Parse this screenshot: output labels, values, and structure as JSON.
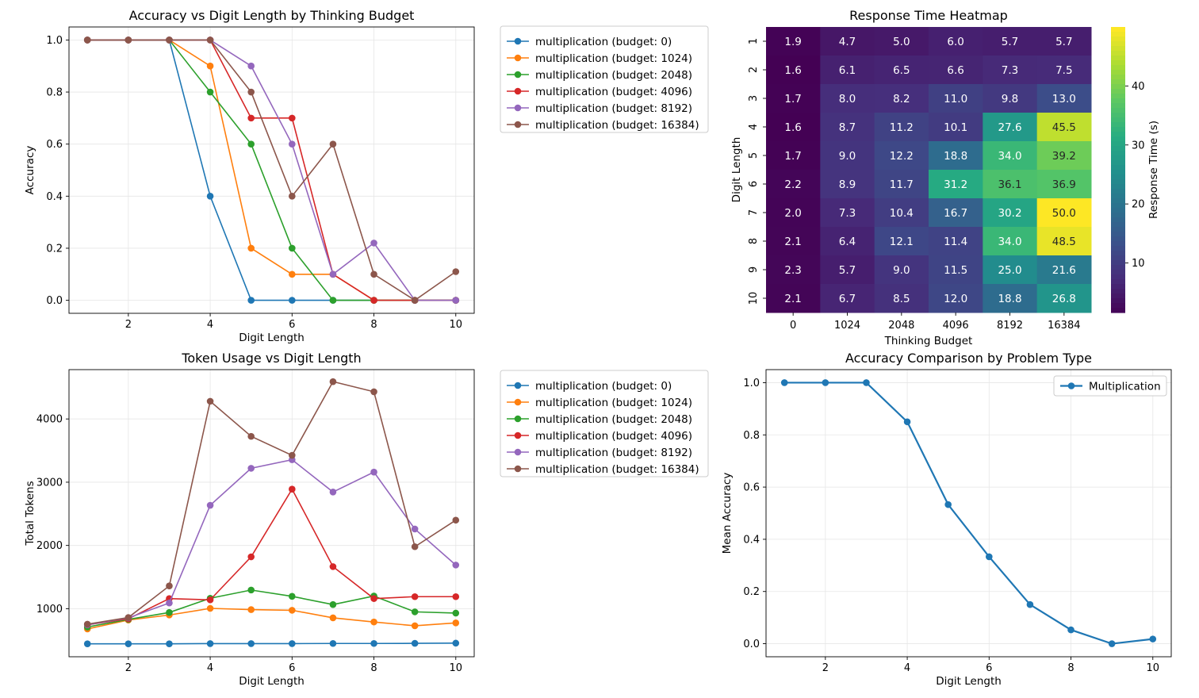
{
  "chart_data": [
    {
      "type": "line",
      "id": "accuracy",
      "title": "Accuracy vs Digit Length by Thinking Budget",
      "xlabel": "Digit Length",
      "ylabel": "Accuracy",
      "xlim": [
        0.55,
        10.45
      ],
      "ylim": [
        -0.05,
        1.05
      ],
      "xticks": [
        2,
        4,
        6,
        8,
        10
      ],
      "yticks": [
        0.0,
        0.2,
        0.4,
        0.6,
        0.8,
        1.0
      ],
      "ytick_labels": [
        "0.0",
        "0.2",
        "0.4",
        "0.6",
        "0.8",
        "1.0"
      ],
      "grid": true,
      "legend_position": "outside-right",
      "x": [
        1,
        2,
        3,
        4,
        5,
        6,
        7,
        8,
        9,
        10
      ],
      "series": [
        {
          "name": "multiplication (budget: 0)",
          "color": "#1f77b4",
          "values": [
            1.0,
            1.0,
            1.0,
            0.4,
            0.0,
            0.0,
            0.0,
            0.0,
            0.0,
            0.0
          ]
        },
        {
          "name": "multiplication (budget: 1024)",
          "color": "#ff7f0e",
          "values": [
            1.0,
            1.0,
            1.0,
            0.9,
            0.2,
            0.1,
            0.1,
            0.0,
            0.0,
            0.0
          ]
        },
        {
          "name": "multiplication (budget: 2048)",
          "color": "#2ca02c",
          "values": [
            1.0,
            1.0,
            1.0,
            0.8,
            0.6,
            0.2,
            0.0,
            0.0,
            0.0,
            0.0
          ]
        },
        {
          "name": "multiplication (budget: 4096)",
          "color": "#d62728",
          "values": [
            1.0,
            1.0,
            1.0,
            1.0,
            0.7,
            0.7,
            0.1,
            0.0,
            0.0,
            0.0
          ]
        },
        {
          "name": "multiplication (budget: 8192)",
          "color": "#9467bd",
          "values": [
            1.0,
            1.0,
            1.0,
            1.0,
            0.9,
            0.6,
            0.1,
            0.22,
            0.0,
            0.0
          ]
        },
        {
          "name": "multiplication (budget: 16384)",
          "color": "#8c564b",
          "values": [
            1.0,
            1.0,
            1.0,
            1.0,
            0.8,
            0.4,
            0.6,
            0.1,
            0.0,
            0.11
          ]
        }
      ]
    },
    {
      "type": "heatmap",
      "id": "heatmap",
      "title": "Response Time Heatmap",
      "xlabel": "Thinking Budget",
      "ylabel": "Digit Length",
      "colorbar_label": "Response Time (s)",
      "colormap": "viridis",
      "vmin": 1.6,
      "vmax": 50.0,
      "colorbar_ticks": [
        10,
        20,
        30,
        40
      ],
      "x_categories": [
        "0",
        "1024",
        "2048",
        "4096",
        "8192",
        "16384"
      ],
      "y_categories": [
        "1",
        "2",
        "3",
        "4",
        "5",
        "6",
        "7",
        "8",
        "9",
        "10"
      ],
      "values": [
        [
          1.9,
          4.7,
          5.0,
          6.0,
          5.7,
          5.7
        ],
        [
          1.6,
          6.1,
          6.5,
          6.6,
          7.3,
          7.5
        ],
        [
          1.7,
          8.0,
          8.2,
          11.0,
          9.8,
          13.0
        ],
        [
          1.6,
          8.7,
          11.2,
          10.1,
          27.6,
          45.5
        ],
        [
          1.7,
          9.0,
          12.2,
          18.8,
          34.0,
          39.2
        ],
        [
          2.2,
          8.9,
          11.7,
          31.2,
          36.1,
          36.9
        ],
        [
          2.0,
          7.3,
          10.4,
          16.7,
          30.2,
          50.0
        ],
        [
          2.1,
          6.4,
          12.1,
          11.4,
          34.0,
          48.5
        ],
        [
          2.3,
          5.7,
          9.0,
          11.5,
          25.0,
          21.6
        ],
        [
          2.1,
          6.7,
          8.5,
          12.0,
          18.8,
          26.8
        ]
      ]
    },
    {
      "type": "line",
      "id": "tokens",
      "title": "Token Usage vs Digit Length",
      "xlabel": "Digit Length",
      "ylabel": "Total Tokens",
      "xlim": [
        0.55,
        10.45
      ],
      "ylim": [
        240,
        4780
      ],
      "xticks": [
        2,
        4,
        6,
        8,
        10
      ],
      "yticks": [
        1000,
        2000,
        3000,
        4000
      ],
      "ytick_labels": [
        "1000",
        "2000",
        "3000",
        "4000"
      ],
      "grid": true,
      "legend_position": "outside-right",
      "x": [
        1,
        2,
        3,
        4,
        5,
        6,
        7,
        8,
        9,
        10
      ],
      "series": [
        {
          "name": "multiplication (budget: 0)",
          "color": "#1f77b4",
          "values": [
            445,
            445,
            445,
            448,
            448,
            448,
            450,
            450,
            452,
            455
          ]
        },
        {
          "name": "multiplication (budget: 1024)",
          "color": "#ff7f0e",
          "values": [
            680,
            820,
            900,
            1005,
            985,
            975,
            855,
            790,
            730,
            775
          ]
        },
        {
          "name": "multiplication (budget: 2048)",
          "color": "#2ca02c",
          "values": [
            710,
            830,
            940,
            1165,
            1295,
            1195,
            1065,
            1200,
            950,
            930
          ]
        },
        {
          "name": "multiplication (budget: 4096)",
          "color": "#d62728",
          "values": [
            745,
            840,
            1160,
            1140,
            1820,
            2890,
            1665,
            1160,
            1190,
            1190
          ]
        },
        {
          "name": "multiplication (budget: 8192)",
          "color": "#9467bd",
          "values": [
            745,
            855,
            1090,
            2635,
            3220,
            3355,
            2845,
            3160,
            2260,
            1690
          ]
        },
        {
          "name": "multiplication (budget: 16384)",
          "color": "#8c564b",
          "values": [
            755,
            860,
            1360,
            4280,
            3725,
            3425,
            4590,
            4430,
            1980,
            2400
          ]
        }
      ]
    },
    {
      "type": "line",
      "id": "comparison",
      "title": "Accuracy Comparison by Problem Type",
      "xlabel": "Digit Length",
      "ylabel": "Mean Accuracy",
      "xlim": [
        0.55,
        10.45
      ],
      "ylim": [
        -0.05,
        1.05
      ],
      "xticks": [
        2,
        4,
        6,
        8,
        10
      ],
      "yticks": [
        0.0,
        0.2,
        0.4,
        0.6,
        0.8,
        1.0
      ],
      "ytick_labels": [
        "0.0",
        "0.2",
        "0.4",
        "0.6",
        "0.8",
        "1.0"
      ],
      "grid": true,
      "legend_position": "top-right",
      "x": [
        1,
        2,
        3,
        4,
        5,
        6,
        7,
        8,
        9,
        10
      ],
      "series": [
        {
          "name": "Multiplication",
          "color": "#1f77b4",
          "values": [
            1.0,
            1.0,
            1.0,
            0.85,
            0.533,
            0.333,
            0.15,
            0.053,
            0.0,
            0.018
          ]
        }
      ]
    }
  ]
}
